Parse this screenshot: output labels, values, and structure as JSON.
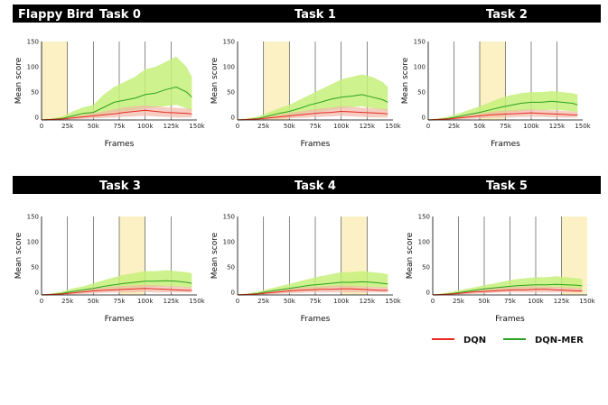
{
  "figure_title": "Flappy Bird",
  "legend": [
    {
      "label": "DQN",
      "color": "#e8291f"
    },
    {
      "label": "DQN-MER",
      "color": "#2ca21f"
    }
  ],
  "colors": {
    "dqn_band": "#f2b8a8",
    "mer_band": "#c5f07a",
    "highlight": "#fbf1c4"
  },
  "chart_data": [
    {
      "type": "line",
      "title": "Task 0",
      "xlabel": "Frames",
      "ylabel": "Mean score",
      "xlim": [
        0,
        150000
      ],
      "ylim": [
        -5,
        150
      ],
      "x_ticks": [
        "0",
        "25k",
        "50k",
        "75k",
        "100k",
        "125k",
        "150k"
      ],
      "y_ticks": [
        "0",
        "50",
        "100",
        "150"
      ],
      "highlight": [
        0,
        25000
      ],
      "x": [
        0,
        10000,
        20000,
        30000,
        40000,
        50000,
        60000,
        70000,
        80000,
        90000,
        100000,
        110000,
        120000,
        130000,
        140000,
        145000
      ],
      "series": [
        {
          "name": "DQN",
          "values": [
            -5,
            -4,
            -3,
            -1,
            1,
            3,
            5,
            7,
            10,
            12,
            14,
            12,
            10,
            9,
            8,
            7
          ],
          "lower": [
            -5,
            -5,
            -5,
            -4,
            -3,
            -2,
            -1,
            0,
            1,
            2,
            3,
            2,
            1,
            0,
            0,
            0
          ],
          "upper": [
            -4,
            -3,
            -1,
            2,
            5,
            9,
            12,
            16,
            20,
            22,
            24,
            22,
            20,
            19,
            18,
            17
          ]
        },
        {
          "name": "DQN-MER",
          "values": [
            -5,
            -4,
            -2,
            3,
            8,
            10,
            20,
            30,
            34,
            38,
            45,
            48,
            55,
            60,
            50,
            40
          ],
          "lower": [
            -5,
            -5,
            -4,
            -1,
            1,
            2,
            5,
            10,
            12,
            14,
            18,
            20,
            22,
            25,
            18,
            12
          ],
          "upper": [
            -4,
            -2,
            2,
            12,
            20,
            25,
            45,
            60,
            70,
            80,
            95,
            100,
            110,
            120,
            100,
            80
          ]
        }
      ]
    },
    {
      "type": "line",
      "title": "Task 1",
      "xlabel": "Frames",
      "ylabel": "Mean score",
      "xlim": [
        0,
        150000
      ],
      "ylim": [
        -5,
        150
      ],
      "x_ticks": [
        "0",
        "25k",
        "50k",
        "75k",
        "100k",
        "125k",
        "150k"
      ],
      "y_ticks": [
        "0",
        "50",
        "100",
        "150"
      ],
      "highlight": [
        25000,
        50000
      ],
      "x": [
        0,
        10000,
        20000,
        30000,
        40000,
        50000,
        60000,
        70000,
        80000,
        90000,
        100000,
        110000,
        120000,
        130000,
        140000,
        145000
      ],
      "series": [
        {
          "name": "DQN",
          "values": [
            -5,
            -4,
            -3,
            -1,
            1,
            3,
            5,
            7,
            9,
            10,
            12,
            11,
            10,
            9,
            8,
            7
          ],
          "lower": [
            -5,
            -5,
            -5,
            -4,
            -3,
            -2,
            -1,
            0,
            1,
            2,
            3,
            2,
            1,
            0,
            0,
            0
          ],
          "upper": [
            -4,
            -3,
            -1,
            2,
            5,
            9,
            12,
            15,
            18,
            19,
            22,
            21,
            19,
            18,
            17,
            16
          ]
        },
        {
          "name": "DQN-MER",
          "values": [
            -5,
            -4,
            -2,
            3,
            8,
            12,
            18,
            25,
            30,
            36,
            40,
            42,
            45,
            40,
            35,
            30
          ],
          "lower": [
            -5,
            -5,
            -4,
            -1,
            1,
            3,
            6,
            10,
            12,
            15,
            18,
            20,
            22,
            18,
            15,
            12
          ],
          "upper": [
            -4,
            -2,
            2,
            10,
            18,
            25,
            35,
            45,
            55,
            65,
            75,
            80,
            85,
            80,
            70,
            60
          ]
        }
      ]
    },
    {
      "type": "line",
      "title": "Task 2",
      "xlabel": "Frames",
      "ylabel": "Mean score",
      "xlim": [
        0,
        150000
      ],
      "ylim": [
        -5,
        150
      ],
      "x_ticks": [
        "0",
        "25k",
        "50k",
        "75k",
        "100k",
        "125k",
        "150k"
      ],
      "y_ticks": [
        "0",
        "50",
        "100",
        "150"
      ],
      "highlight": [
        50000,
        75000
      ],
      "x": [
        0,
        10000,
        20000,
        30000,
        40000,
        50000,
        60000,
        70000,
        80000,
        90000,
        100000,
        110000,
        120000,
        130000,
        140000,
        145000
      ],
      "series": [
        {
          "name": "DQN",
          "values": [
            -5,
            -4,
            -3,
            -1,
            1,
            3,
            5,
            6,
            7,
            8,
            9,
            8,
            7,
            6,
            5,
            5
          ],
          "lower": [
            -5,
            -5,
            -5,
            -4,
            -3,
            -2,
            -1,
            0,
            0,
            1,
            1,
            1,
            0,
            0,
            0,
            0
          ],
          "upper": [
            -4,
            -3,
            -1,
            2,
            5,
            8,
            11,
            13,
            14,
            15,
            16,
            15,
            14,
            13,
            12,
            11
          ]
        },
        {
          "name": "DQN-MER",
          "values": [
            -5,
            -4,
            -2,
            2,
            6,
            10,
            15,
            20,
            24,
            28,
            30,
            30,
            32,
            30,
            28,
            25
          ],
          "lower": [
            -5,
            -5,
            -4,
            -1,
            1,
            3,
            5,
            8,
            10,
            12,
            14,
            14,
            15,
            14,
            12,
            10
          ],
          "upper": [
            -4,
            -2,
            2,
            8,
            15,
            22,
            30,
            38,
            44,
            48,
            50,
            50,
            52,
            50,
            48,
            45
          ]
        }
      ]
    },
    {
      "type": "line",
      "title": "Task 3",
      "xlabel": "Frames",
      "ylabel": "Mean score",
      "xlim": [
        0,
        150000
      ],
      "ylim": [
        -5,
        150
      ],
      "x_ticks": [
        "0",
        "25k",
        "50k",
        "75k",
        "100k",
        "125k",
        "150k"
      ],
      "y_ticks": [
        "0",
        "50",
        "100",
        "150"
      ],
      "highlight": [
        75000,
        100000
      ],
      "x": [
        0,
        10000,
        20000,
        30000,
        40000,
        50000,
        60000,
        70000,
        80000,
        90000,
        100000,
        110000,
        120000,
        130000,
        140000,
        145000
      ],
      "series": [
        {
          "name": "DQN",
          "values": [
            -5,
            -4,
            -3,
            -1,
            1,
            3,
            4,
            5,
            6,
            7,
            8,
            7,
            6,
            5,
            4,
            4
          ],
          "lower": [
            -5,
            -5,
            -5,
            -4,
            -3,
            -2,
            -1,
            0,
            0,
            0,
            1,
            0,
            0,
            0,
            0,
            0
          ],
          "upper": [
            -4,
            -3,
            -1,
            2,
            5,
            8,
            10,
            12,
            13,
            14,
            15,
            14,
            13,
            12,
            11,
            10
          ]
        },
        {
          "name": "DQN-MER",
          "values": [
            -5,
            -4,
            -2,
            2,
            5,
            8,
            12,
            15,
            18,
            20,
            22,
            22,
            23,
            22,
            20,
            18
          ],
          "lower": [
            -5,
            -5,
            -4,
            -1,
            1,
            2,
            4,
            6,
            8,
            10,
            11,
            11,
            12,
            11,
            10,
            9
          ],
          "upper": [
            -4,
            -2,
            2,
            8,
            12,
            18,
            24,
            30,
            35,
            38,
            42,
            42,
            44,
            42,
            40,
            38
          ]
        }
      ]
    },
    {
      "type": "line",
      "title": "Task 4",
      "xlabel": "Frames",
      "ylabel": "Mean score",
      "xlim": [
        0,
        150000
      ],
      "ylim": [
        -5,
        150
      ],
      "x_ticks": [
        "0",
        "25k",
        "50k",
        "75k",
        "100k",
        "125k",
        "150k"
      ],
      "y_ticks": [
        "0",
        "50",
        "100",
        "150"
      ],
      "highlight": [
        100000,
        125000
      ],
      "x": [
        0,
        10000,
        20000,
        30000,
        40000,
        50000,
        60000,
        70000,
        80000,
        90000,
        100000,
        110000,
        120000,
        130000,
        140000,
        145000
      ],
      "series": [
        {
          "name": "DQN",
          "values": [
            -5,
            -4,
            -3,
            -1,
            1,
            3,
            4,
            5,
            6,
            6,
            7,
            7,
            6,
            5,
            4,
            4
          ],
          "lower": [
            -5,
            -5,
            -5,
            -4,
            -3,
            -2,
            -1,
            0,
            0,
            0,
            0,
            0,
            0,
            0,
            0,
            0
          ],
          "upper": [
            -4,
            -3,
            -1,
            2,
            5,
            8,
            10,
            11,
            12,
            13,
            14,
            13,
            12,
            11,
            10,
            10
          ]
        },
        {
          "name": "DQN-MER",
          "values": [
            -5,
            -4,
            -2,
            2,
            5,
            8,
            11,
            14,
            16,
            18,
            20,
            20,
            21,
            20,
            18,
            17
          ],
          "lower": [
            -5,
            -5,
            -4,
            -1,
            1,
            2,
            4,
            6,
            7,
            9,
            10,
            10,
            11,
            10,
            9,
            8
          ],
          "upper": [
            -4,
            -2,
            2,
            7,
            12,
            17,
            22,
            27,
            32,
            36,
            40,
            40,
            42,
            40,
            38,
            36
          ]
        }
      ]
    },
    {
      "type": "line",
      "title": "Task 5",
      "xlabel": "Frames",
      "ylabel": "Mean score",
      "xlim": [
        0,
        150000
      ],
      "ylim": [
        -5,
        150
      ],
      "x_ticks": [
        "0",
        "25k",
        "50k",
        "75k",
        "100k",
        "125k",
        "150k"
      ],
      "y_ticks": [
        "0",
        "50",
        "100",
        "150"
      ],
      "highlight": [
        125000,
        150000
      ],
      "x": [
        0,
        10000,
        20000,
        30000,
        40000,
        50000,
        60000,
        70000,
        80000,
        90000,
        100000,
        110000,
        120000,
        130000,
        140000,
        145000
      ],
      "series": [
        {
          "name": "DQN",
          "values": [
            -5,
            -4,
            -3,
            -1,
            1,
            2,
            3,
            4,
            5,
            5,
            6,
            6,
            5,
            4,
            3,
            3
          ],
          "lower": [
            -5,
            -5,
            -5,
            -4,
            -3,
            -2,
            -1,
            0,
            0,
            0,
            0,
            0,
            0,
            0,
            0,
            0
          ],
          "upper": [
            -4,
            -3,
            -1,
            2,
            4,
            7,
            9,
            10,
            11,
            12,
            12,
            12,
            11,
            10,
            9,
            9
          ]
        },
        {
          "name": "DQN-MER",
          "values": [
            -5,
            -4,
            -2,
            1,
            4,
            7,
            9,
            11,
            13,
            14,
            15,
            15,
            16,
            15,
            14,
            13
          ],
          "lower": [
            -5,
            -5,
            -4,
            -1,
            0,
            2,
            3,
            5,
            6,
            7,
            8,
            8,
            9,
            8,
            7,
            7
          ],
          "upper": [
            -4,
            -2,
            2,
            6,
            10,
            14,
            18,
            22,
            26,
            28,
            30,
            30,
            32,
            30,
            28,
            26
          ]
        }
      ]
    }
  ]
}
